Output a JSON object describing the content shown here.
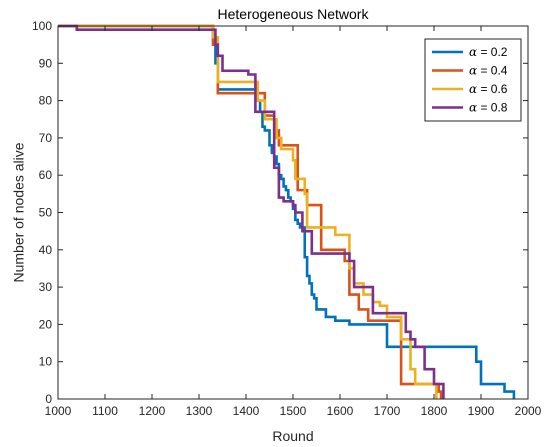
{
  "chart_data": {
    "type": "line",
    "title": "Heterogeneous Network",
    "xlabel": "Round",
    "ylabel": "Number of nodes alive",
    "xlim": [
      1000,
      2000
    ],
    "ylim": [
      0,
      100
    ],
    "xticks": [
      "1000",
      "1100",
      "1200",
      "1300",
      "1400",
      "1500",
      "1600",
      "1700",
      "1800",
      "1900",
      "2000"
    ],
    "yticks": [
      "0",
      "10",
      "20",
      "30",
      "40",
      "50",
      "60",
      "70",
      "80",
      "90",
      "100"
    ],
    "grid": false,
    "legend_position": "top-right",
    "step": true,
    "series": [
      {
        "name": "α = 0.2",
        "color": "#0072BD",
        "x": [
          1000,
          1330,
          1335,
          1340,
          1420,
          1425,
          1430,
          1435,
          1440,
          1450,
          1455,
          1460,
          1465,
          1470,
          1475,
          1480,
          1485,
          1490,
          1495,
          1500,
          1505,
          1510,
          1515,
          1520,
          1525,
          1530,
          1535,
          1540,
          1545,
          1550,
          1560,
          1570,
          1590,
          1620,
          1660,
          1700,
          1760,
          1800,
          1870,
          1890,
          1900,
          1950,
          1970,
          1970
        ],
        "y": [
          100,
          95,
          90,
          83,
          83,
          80,
          77,
          73,
          72,
          68,
          66,
          65,
          63,
          60,
          59,
          57,
          56,
          54,
          53,
          51,
          48,
          47,
          46,
          46,
          38,
          33,
          31,
          28,
          27,
          24,
          24,
          22,
          21,
          20,
          20,
          14,
          14,
          14,
          14,
          10,
          4,
          2,
          2,
          0
        ]
      },
      {
        "name": "α = 0.4",
        "color": "#D95319",
        "x": [
          1000,
          1070,
          1330,
          1340,
          1420,
          1440,
          1460,
          1470,
          1500,
          1510,
          1530,
          1560,
          1600,
          1610,
          1620,
          1640,
          1660,
          1720,
          1730,
          1800,
          1810,
          1815
        ],
        "y": [
          100,
          100,
          95,
          82,
          82,
          76,
          72,
          68,
          68,
          56,
          52,
          40,
          40,
          37,
          28,
          24,
          21,
          21,
          4,
          4,
          2,
          0
        ]
      },
      {
        "name": "α = 0.6",
        "color": "#EDB120",
        "x": [
          1000,
          1330,
          1340,
          1415,
          1425,
          1440,
          1465,
          1475,
          1490,
          1500,
          1505,
          1525,
          1530,
          1570,
          1590,
          1610,
          1620,
          1630,
          1650,
          1670,
          1685,
          1700,
          1730,
          1750,
          1760,
          1800,
          1805
        ],
        "y": [
          100,
          97,
          85,
          85,
          80,
          75,
          70,
          67,
          67,
          64,
          59,
          55,
          46,
          46,
          44,
          44,
          35,
          31,
          28,
          26,
          25,
          22,
          16,
          8,
          4,
          4,
          0
        ]
      },
      {
        "name": "α = 0.8",
        "color": "#7E2F8E",
        "x": [
          1000,
          1030,
          1040,
          1330,
          1335,
          1340,
          1350,
          1400,
          1405,
          1420,
          1450,
          1460,
          1470,
          1480,
          1490,
          1500,
          1505,
          1520,
          1540,
          1590,
          1620,
          1630,
          1670,
          1710,
          1740,
          1750,
          1760,
          1780,
          1800,
          1820,
          1820
        ],
        "y": [
          100,
          100,
          99,
          99,
          95,
          92,
          88,
          88,
          87,
          77,
          77,
          62,
          54,
          53,
          53,
          52,
          50,
          45,
          39,
          39,
          37,
          30,
          23,
          23,
          18,
          16,
          14,
          8,
          4,
          2,
          0
        ]
      }
    ]
  }
}
